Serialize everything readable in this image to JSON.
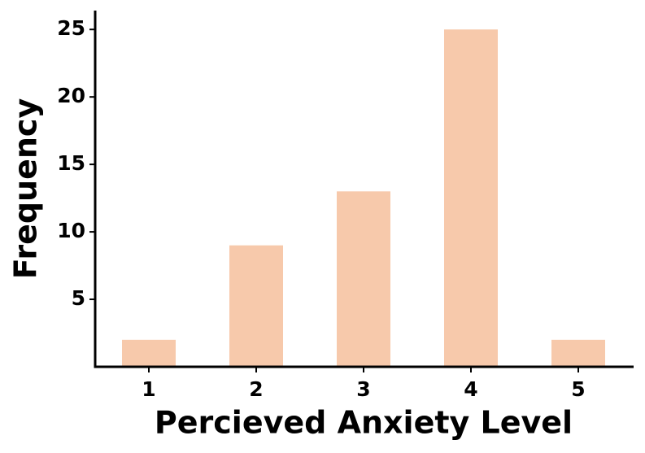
{
  "chart_data": {
    "type": "bar",
    "categories": [
      "1",
      "2",
      "3",
      "4",
      "5"
    ],
    "values": [
      2,
      9,
      13,
      25,
      2
    ],
    "color": "#f7c9ab",
    "xlabel": "Percieved Anxiety Level",
    "ylabel": "Frequency",
    "ylim": [
      0,
      26.4
    ],
    "yticks": [
      5,
      10,
      15,
      20,
      25
    ],
    "grid": false
  }
}
